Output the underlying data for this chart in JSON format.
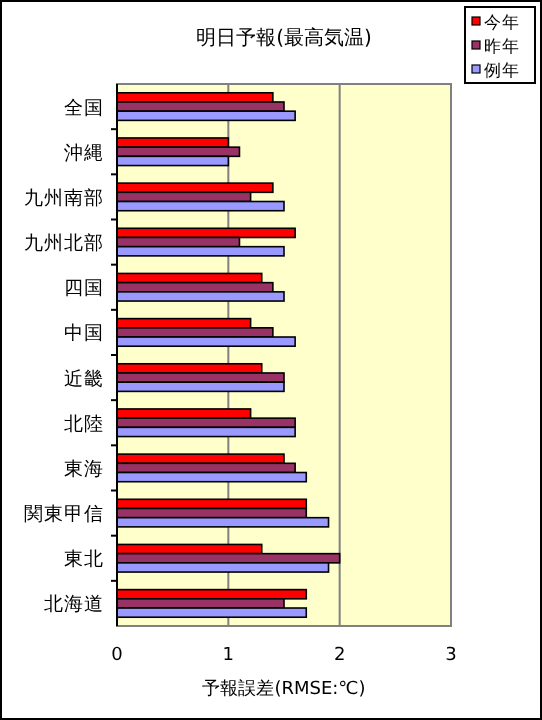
{
  "chart_data": {
    "type": "bar",
    "orientation": "horizontal",
    "title": "明日予報(最高気温)",
    "xlabel": "予報誤差(RMSE:℃)",
    "categories": [
      "全国",
      "沖縄",
      "九州南部",
      "九州北部",
      "四国",
      "中国",
      "近畿",
      "北陸",
      "東海",
      "関東甲信",
      "東北",
      "北海道"
    ],
    "series": [
      {
        "name": "今年",
        "color": "#ff0000",
        "values": [
          1.4,
          1.0,
          1.4,
          1.6,
          1.3,
          1.2,
          1.3,
          1.2,
          1.5,
          1.7,
          1.3,
          1.7
        ]
      },
      {
        "name": "昨年",
        "color": "#993366",
        "values": [
          1.5,
          1.1,
          1.2,
          1.1,
          1.4,
          1.4,
          1.5,
          1.6,
          1.6,
          1.7,
          2.0,
          1.5
        ]
      },
      {
        "name": "例年",
        "color": "#9999ff",
        "values": [
          1.6,
          1.0,
          1.5,
          1.5,
          1.5,
          1.6,
          1.5,
          1.6,
          1.7,
          1.9,
          1.9,
          1.7
        ]
      }
    ],
    "xlim": [
      0,
      3
    ],
    "xticks": [
      0,
      1,
      2,
      3
    ],
    "grid": "x",
    "legend": "top right"
  }
}
